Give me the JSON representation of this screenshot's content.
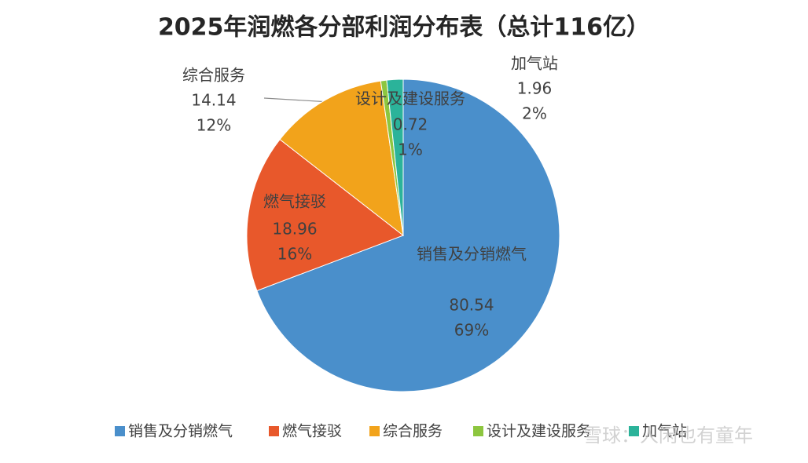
{
  "chart_data": {
    "type": "pie",
    "title": "2025年润燃各分部利润分布表（总计116亿）",
    "categories": [
      "销售及分销燃气",
      "燃气接驳",
      "综合服务",
      "设计及建设服务",
      "加气站"
    ],
    "values": [
      80.54,
      18.96,
      14.14,
      0.72,
      1.96
    ],
    "percent_labels": [
      "69%",
      "16%",
      "12%",
      "1%",
      "2%"
    ],
    "colors": [
      "#4a8fcb",
      "#e8582b",
      "#f2a31b",
      "#8dc63f",
      "#2bb39a"
    ],
    "legend": "bottom",
    "watermark": "雪球：人闲也有童年"
  }
}
